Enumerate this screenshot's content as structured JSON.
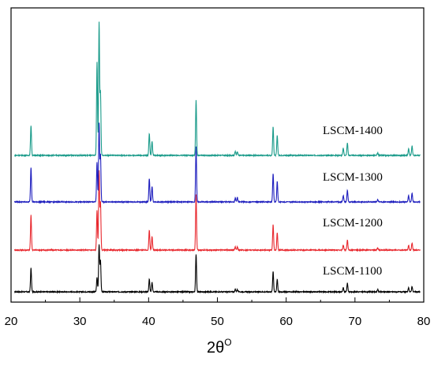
{
  "chart_data": {
    "type": "line",
    "xlabel": "2θ",
    "xlabel_superscript": "O",
    "xlim": [
      20,
      80
    ],
    "x_ticks": [
      "20",
      "30",
      "40",
      "50",
      "60",
      "70",
      "80"
    ],
    "y_ticks_labeled": false,
    "grid": false,
    "legend": "none (series labels placed inline right of each trace)",
    "series": [
      {
        "name": "LSCM-1100",
        "color": "#000000",
        "offset": 0,
        "peaks": [
          {
            "x": 22.9,
            "h": 30
          },
          {
            "x": 32.5,
            "h": 18
          },
          {
            "x": 32.8,
            "h": 60
          },
          {
            "x": 33.0,
            "h": 40
          },
          {
            "x": 40.1,
            "h": 16
          },
          {
            "x": 40.5,
            "h": 12
          },
          {
            "x": 46.9,
            "h": 48
          },
          {
            "x": 52.6,
            "h": 3
          },
          {
            "x": 52.9,
            "h": 3
          },
          {
            "x": 58.1,
            "h": 26
          },
          {
            "x": 58.7,
            "h": 16
          },
          {
            "x": 68.3,
            "h": 5
          },
          {
            "x": 68.9,
            "h": 11
          },
          {
            "x": 73.3,
            "h": 3
          },
          {
            "x": 77.8,
            "h": 5
          },
          {
            "x": 78.3,
            "h": 7
          }
        ]
      },
      {
        "name": "LSCM-1200",
        "color": "#e8282e",
        "offset": 1,
        "peaks": [
          {
            "x": 22.9,
            "h": 44
          },
          {
            "x": 32.5,
            "h": 50
          },
          {
            "x": 32.8,
            "h": 100
          },
          {
            "x": 33.0,
            "h": 60
          },
          {
            "x": 40.1,
            "h": 25
          },
          {
            "x": 40.5,
            "h": 17
          },
          {
            "x": 46.9,
            "h": 70
          },
          {
            "x": 52.6,
            "h": 4
          },
          {
            "x": 52.9,
            "h": 4
          },
          {
            "x": 58.1,
            "h": 32
          },
          {
            "x": 58.7,
            "h": 22
          },
          {
            "x": 68.3,
            "h": 6
          },
          {
            "x": 68.9,
            "h": 13
          },
          {
            "x": 73.3,
            "h": 3
          },
          {
            "x": 77.8,
            "h": 6
          },
          {
            "x": 78.3,
            "h": 9
          }
        ]
      },
      {
        "name": "LSCM-1300",
        "color": "#1e1ebe",
        "offset": 2,
        "peaks": [
          {
            "x": 22.9,
            "h": 44
          },
          {
            "x": 32.5,
            "h": 50
          },
          {
            "x": 32.8,
            "h": 100
          },
          {
            "x": 33.0,
            "h": 60
          },
          {
            "x": 40.1,
            "h": 30
          },
          {
            "x": 40.5,
            "h": 20
          },
          {
            "x": 46.9,
            "h": 70
          },
          {
            "x": 52.6,
            "h": 5
          },
          {
            "x": 52.9,
            "h": 5
          },
          {
            "x": 58.1,
            "h": 36
          },
          {
            "x": 58.7,
            "h": 26
          },
          {
            "x": 68.3,
            "h": 8
          },
          {
            "x": 68.9,
            "h": 15
          },
          {
            "x": 73.3,
            "h": 3
          },
          {
            "x": 77.8,
            "h": 8
          },
          {
            "x": 78.3,
            "h": 11
          }
        ]
      },
      {
        "name": "LSCM-1400",
        "color": "#1a9b8a",
        "offset": 3,
        "peaks": [
          {
            "x": 22.9,
            "h": 38
          },
          {
            "x": 32.5,
            "h": 118
          },
          {
            "x": 32.8,
            "h": 168
          },
          {
            "x": 33.0,
            "h": 80
          },
          {
            "x": 40.1,
            "h": 28
          },
          {
            "x": 40.5,
            "h": 18
          },
          {
            "x": 46.9,
            "h": 70
          },
          {
            "x": 52.6,
            "h": 5
          },
          {
            "x": 52.9,
            "h": 5
          },
          {
            "x": 58.1,
            "h": 36
          },
          {
            "x": 58.7,
            "h": 25
          },
          {
            "x": 68.3,
            "h": 9
          },
          {
            "x": 68.9,
            "h": 16
          },
          {
            "x": 73.3,
            "h": 3
          },
          {
            "x": 77.8,
            "h": 9
          },
          {
            "x": 78.3,
            "h": 12
          }
        ]
      }
    ]
  }
}
